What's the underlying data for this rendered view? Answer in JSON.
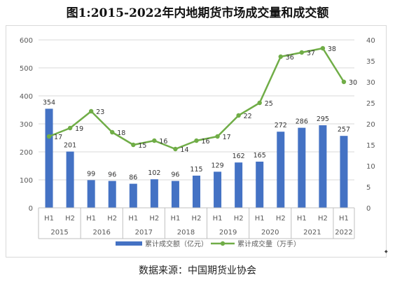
{
  "title": "图1:2015-2022年内地期货市场成交量和成交额",
  "source": "数据来源：中国期货业协会",
  "chart_data": {
    "type": "bar",
    "combo": "bar + line (secondary axis)",
    "categories": [
      "H1",
      "H2",
      "H1",
      "H2",
      "H1",
      "H2",
      "H1",
      "H2",
      "H1",
      "H2",
      "H1",
      "H2",
      "H1",
      "H2",
      "H1"
    ],
    "years": [
      {
        "label": "2015",
        "count": 2
      },
      {
        "label": "2016",
        "count": 2
      },
      {
        "label": "2017",
        "count": 2
      },
      {
        "label": "2018",
        "count": 2
      },
      {
        "label": "2019",
        "count": 2
      },
      {
        "label": "2020",
        "count": 2
      },
      {
        "label": "2021",
        "count": 2
      },
      {
        "label": "2022",
        "count": 1
      }
    ],
    "series": [
      {
        "name": "累计成交额（亿元）",
        "type": "bar",
        "axis": "left",
        "color": "#4472c4",
        "values": [
          354,
          201,
          99,
          96,
          86,
          102,
          96,
          115,
          129,
          162,
          165,
          272,
          286,
          295,
          257
        ]
      },
      {
        "name": "累计成交量（万手）",
        "type": "line",
        "axis": "right",
        "color": "#70ad47",
        "values": [
          17,
          19,
          23,
          18,
          15,
          16,
          14,
          16,
          17,
          22,
          25,
          36,
          37,
          38,
          30
        ]
      }
    ],
    "y_left": {
      "min": 0,
      "max": 600,
      "step": 100
    },
    "y_right": {
      "min": 0,
      "max": 40,
      "step": 5
    },
    "legend_position": "bottom",
    "grid": true
  }
}
